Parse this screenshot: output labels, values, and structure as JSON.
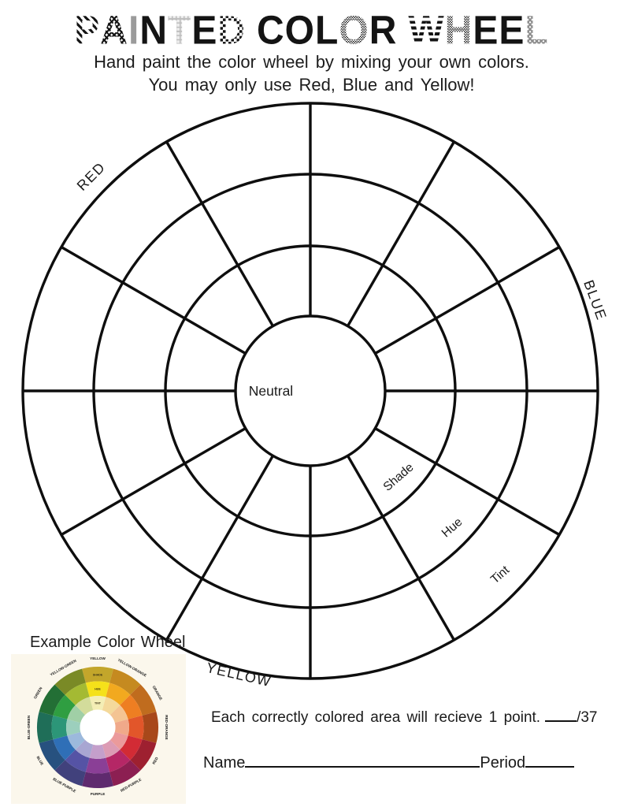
{
  "page_title": "PAINTED COLOR WHEEL",
  "subtitle": {
    "line1": "Hand paint the color wheel by mixing your own colors.",
    "line2": "You may only use Red, Blue and Yellow!"
  },
  "wheel": {
    "center_label": "Neutral",
    "ring_labels": {
      "inner": "Shade",
      "middle": "Hue",
      "outer": "Tint"
    },
    "primaries": {
      "red": "RED",
      "blue": "BLUE",
      "yellow": "YELLOW"
    },
    "sector_count": 12,
    "ring_count": 3,
    "paintable_areas": 37
  },
  "example": {
    "heading": "Example Color Wheel",
    "ring_texts": [
      "SHADE",
      "HUE",
      "TINT"
    ],
    "segments": [
      {
        "name": "YELLOW",
        "angle": 90,
        "label_rotation": 0,
        "shade": "#c3a62b",
        "hue": "#f5e11a",
        "tint": "#f4eeb5"
      },
      {
        "name": "YELLOW-ORANGE",
        "angle": 60,
        "label_rotation": 30,
        "shade": "#c58a20",
        "hue": "#f2a91f",
        "tint": "#f4d99b"
      },
      {
        "name": "ORANGE",
        "angle": 30,
        "label_rotation": 60,
        "shade": "#c06c1e",
        "hue": "#ee7e22",
        "tint": "#f4c493"
      },
      {
        "name": "RED-ORANGE",
        "angle": 0,
        "label_rotation": 90,
        "shade": "#a8481a",
        "hue": "#e2562a",
        "tint": "#f0a98a"
      },
      {
        "name": "RED",
        "angle": -30,
        "label_rotation": -60,
        "shade": "#9e2030",
        "hue": "#d22b35",
        "tint": "#eb9a9b"
      },
      {
        "name": "RED-PURPLE",
        "angle": -60,
        "label_rotation": -30,
        "shade": "#8c1f52",
        "hue": "#b52766",
        "tint": "#dc9bb4"
      },
      {
        "name": "PURPLE",
        "angle": -90,
        "label_rotation": 0,
        "shade": "#5f2a6e",
        "hue": "#8a3f96",
        "tint": "#c49fcb"
      },
      {
        "name": "BLUE-PURPLE",
        "angle": -120,
        "label_rotation": 30,
        "shade": "#41417c",
        "hue": "#5553a5",
        "tint": "#a8a6d2"
      },
      {
        "name": "BLUE",
        "angle": -150,
        "label_rotation": 60,
        "shade": "#27517f",
        "hue": "#2f6fb7",
        "tint": "#9cb9dc"
      },
      {
        "name": "BLUE-GREEN",
        "angle": 180,
        "label_rotation": -90,
        "shade": "#1f6e58",
        "hue": "#2c9678",
        "tint": "#9ccfbd"
      },
      {
        "name": "GREEN",
        "angle": 150,
        "label_rotation": -60,
        "shade": "#236f35",
        "hue": "#2f9e41",
        "tint": "#a0cfa6"
      },
      {
        "name": "YELLOW-GREEN",
        "angle": 120,
        "label_rotation": -30,
        "shade": "#7a8a26",
        "hue": "#a4ba33",
        "tint": "#d3dc9b"
      }
    ]
  },
  "scoring": {
    "text": "Each correctly colored area will recieve 1 point.",
    "total": "/37"
  },
  "footer": {
    "name_label": "Name",
    "period_label": "Period"
  },
  "ink_color": "#111111"
}
